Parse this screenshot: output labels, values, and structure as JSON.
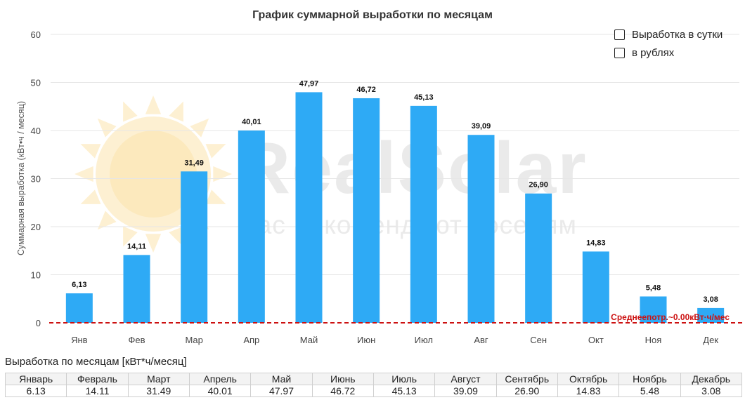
{
  "chart_data": {
    "type": "bar",
    "title": "График суммарной выработки по месяцам",
    "ylabel": "Суммарная выработка (кВт•ч / месяц)",
    "xlabel": "",
    "categories": [
      "Янв",
      "Фев",
      "Мар",
      "Апр",
      "Май",
      "Июн",
      "Июл",
      "Авг",
      "Сен",
      "Окт",
      "Ноя",
      "Дек"
    ],
    "values": [
      6.13,
      14.11,
      31.49,
      40.01,
      47.97,
      46.72,
      45.13,
      39.09,
      26.9,
      14.83,
      5.48,
      3.08
    ],
    "value_labels": [
      "6,13",
      "14,11",
      "31,49",
      "40,01",
      "47,97",
      "46,72",
      "45,13",
      "39,09",
      "26,90",
      "14,83",
      "5,48",
      "3,08"
    ],
    "ylim": [
      0,
      60
    ],
    "yticks": [
      0,
      10,
      20,
      30,
      40,
      50,
      60
    ],
    "grid": true,
    "bar_color": "#2eaaf5",
    "reference_line": {
      "value": 0,
      "label": "Среднееп­отр.~0.00кВт·ч/мес",
      "color": "#cc1111"
    },
    "legend_position": "top-right"
  },
  "legend": {
    "items": [
      {
        "label": "Выработка в сутки",
        "checked": false
      },
      {
        "label": "в рублях",
        "checked": false
      }
    ]
  },
  "watermark": {
    "brand": "RealSolar",
    "tagline": "Нас рекомендуют соседям"
  },
  "table": {
    "title": "Выработка по месяцам [кВт*ч/месяц]",
    "months": [
      "Январь",
      "Февраль",
      "Март",
      "Апрель",
      "Май",
      "Июнь",
      "Июль",
      "Август",
      "Сентябрь",
      "Октябрь",
      "Ноябрь",
      "Декабрь"
    ],
    "values": [
      "6.13",
      "14.11",
      "31.49",
      "40.01",
      "47.97",
      "46.72",
      "45.13",
      "39.09",
      "26.90",
      "14.83",
      "5.48",
      "3.08"
    ]
  }
}
